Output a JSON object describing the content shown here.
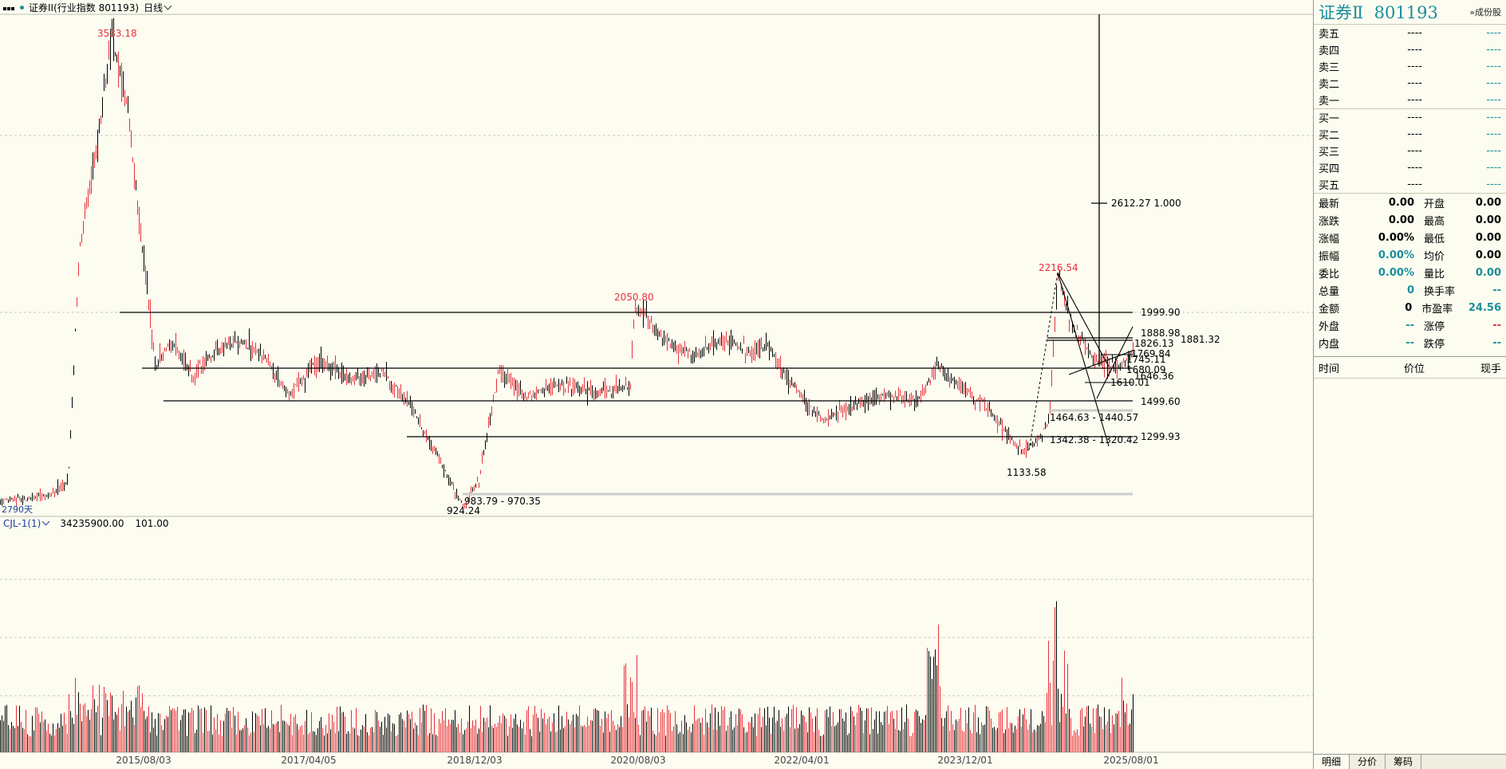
{
  "topbar": {
    "title": "证券II(行业指数 801193)",
    "period": "日线"
  },
  "price_annotations": {
    "high_2015": "3533.18",
    "high_2020": "2050.80",
    "high_2024": "2216.54",
    "low_2018": "924.24",
    "low_2024": "1133.58",
    "fib": "2612.27  1.000",
    "lines": [
      "1999.90",
      "1888.98",
      "1881.32",
      "1826.13",
      "1769.84",
      "1745.11",
      "1680.09",
      "1646.36",
      "1610.01",
      "1499.60",
      "1299.93"
    ],
    "zone1": "1464.63 - 1440.57",
    "zone2": "1342.38 - 1320.42",
    "zone3": "983.79 - 970.35",
    "days": "2790天"
  },
  "volume": {
    "indicator": "CJL-1(1)",
    "value": "34235900.00",
    "extra": "101.00"
  },
  "x_axis": [
    "2015/08/03",
    "2017/04/05",
    "2018/12/03",
    "2020/08/03",
    "2022/04/01",
    "2023/12/01",
    "2025/08/01"
  ],
  "right_panel": {
    "name": "证券Ⅱ",
    "code": "801193",
    "link": "成份股",
    "asks": [
      {
        "label": "卖五",
        "price": "----",
        "vol": "----"
      },
      {
        "label": "卖四",
        "price": "----",
        "vol": "----"
      },
      {
        "label": "卖三",
        "price": "----",
        "vol": "----"
      },
      {
        "label": "卖二",
        "price": "----",
        "vol": "----"
      },
      {
        "label": "卖一",
        "price": "----",
        "vol": "----"
      }
    ],
    "bids": [
      {
        "label": "买一",
        "price": "----",
        "vol": "----"
      },
      {
        "label": "买二",
        "price": "----",
        "vol": "----"
      },
      {
        "label": "买三",
        "price": "----",
        "vol": "----"
      },
      {
        "label": "买四",
        "price": "----",
        "vol": "----"
      },
      {
        "label": "买五",
        "price": "----",
        "vol": "----"
      }
    ],
    "quotes": [
      {
        "k": "最新",
        "v": "0.00",
        "k2": "开盘",
        "v2": "0.00"
      },
      {
        "k": "涨跌",
        "v": "0.00",
        "k2": "最高",
        "v2": "0.00"
      },
      {
        "k": "涨幅",
        "v": "0.00%",
        "k2": "最低",
        "v2": "0.00"
      },
      {
        "k": "振幅",
        "v": "0.00%",
        "k2": "均价",
        "v2": "0.00"
      },
      {
        "k": "委比",
        "v": "0.00%",
        "k2": "量比",
        "v2": "0.00"
      },
      {
        "k": "总量",
        "v": "0",
        "k2": "换手率",
        "v2": "--"
      },
      {
        "k": "金额",
        "v": "0",
        "k2": "市盈率",
        "v2": "24.56"
      },
      {
        "k": "外盘",
        "v": "--",
        "k2": "涨停",
        "v2": "--"
      },
      {
        "k": "内盘",
        "v": "--",
        "k2": "跌停",
        "v2": "--"
      }
    ],
    "trade_head": [
      "时间",
      "价位",
      "现手"
    ],
    "tabs": [
      "明细",
      "分价",
      "筹码"
    ]
  },
  "colors": {
    "up": "#e8303a",
    "down": "#000000",
    "accent": "#1a8f9c"
  }
}
